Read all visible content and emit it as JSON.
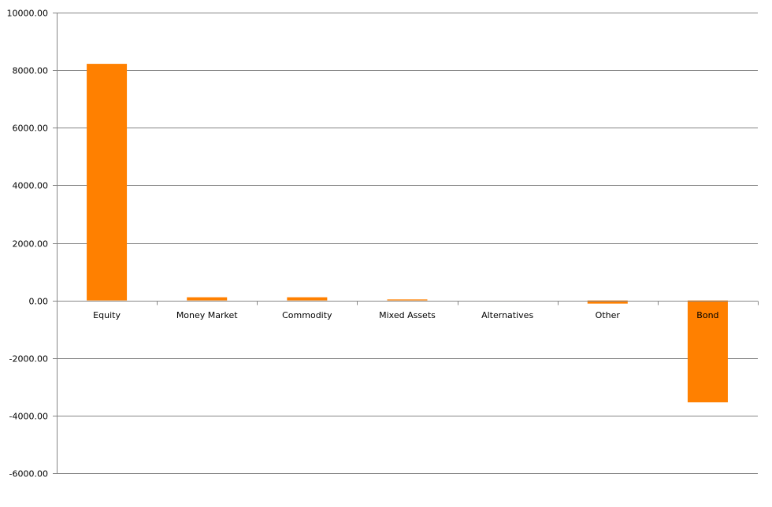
{
  "chart_data": {
    "type": "bar",
    "title": "",
    "xlabel": "",
    "ylabel": "",
    "categories": [
      "Equity",
      "Money Market",
      "Commodity",
      "Mixed Assets",
      "Alternatives",
      "Other",
      "Bond"
    ],
    "values": [
      8220,
      110,
      110,
      35,
      0,
      -110,
      -3540
    ],
    "ylim": [
      -6000,
      10000
    ],
    "yticks": [
      10000,
      8000,
      6000,
      4000,
      2000,
      0,
      -2000,
      -4000,
      -6000
    ],
    "ytick_labels": [
      "10000.00",
      "8000.00",
      "6000.00",
      "4000.00",
      "2000.00",
      "0.00",
      "-2000.00",
      "-4000.00",
      "-6000.00"
    ],
    "grid": true,
    "legend": "none",
    "colors": {
      "bar": "#FF8000",
      "grid": "#868686",
      "axis": "#868686"
    }
  }
}
